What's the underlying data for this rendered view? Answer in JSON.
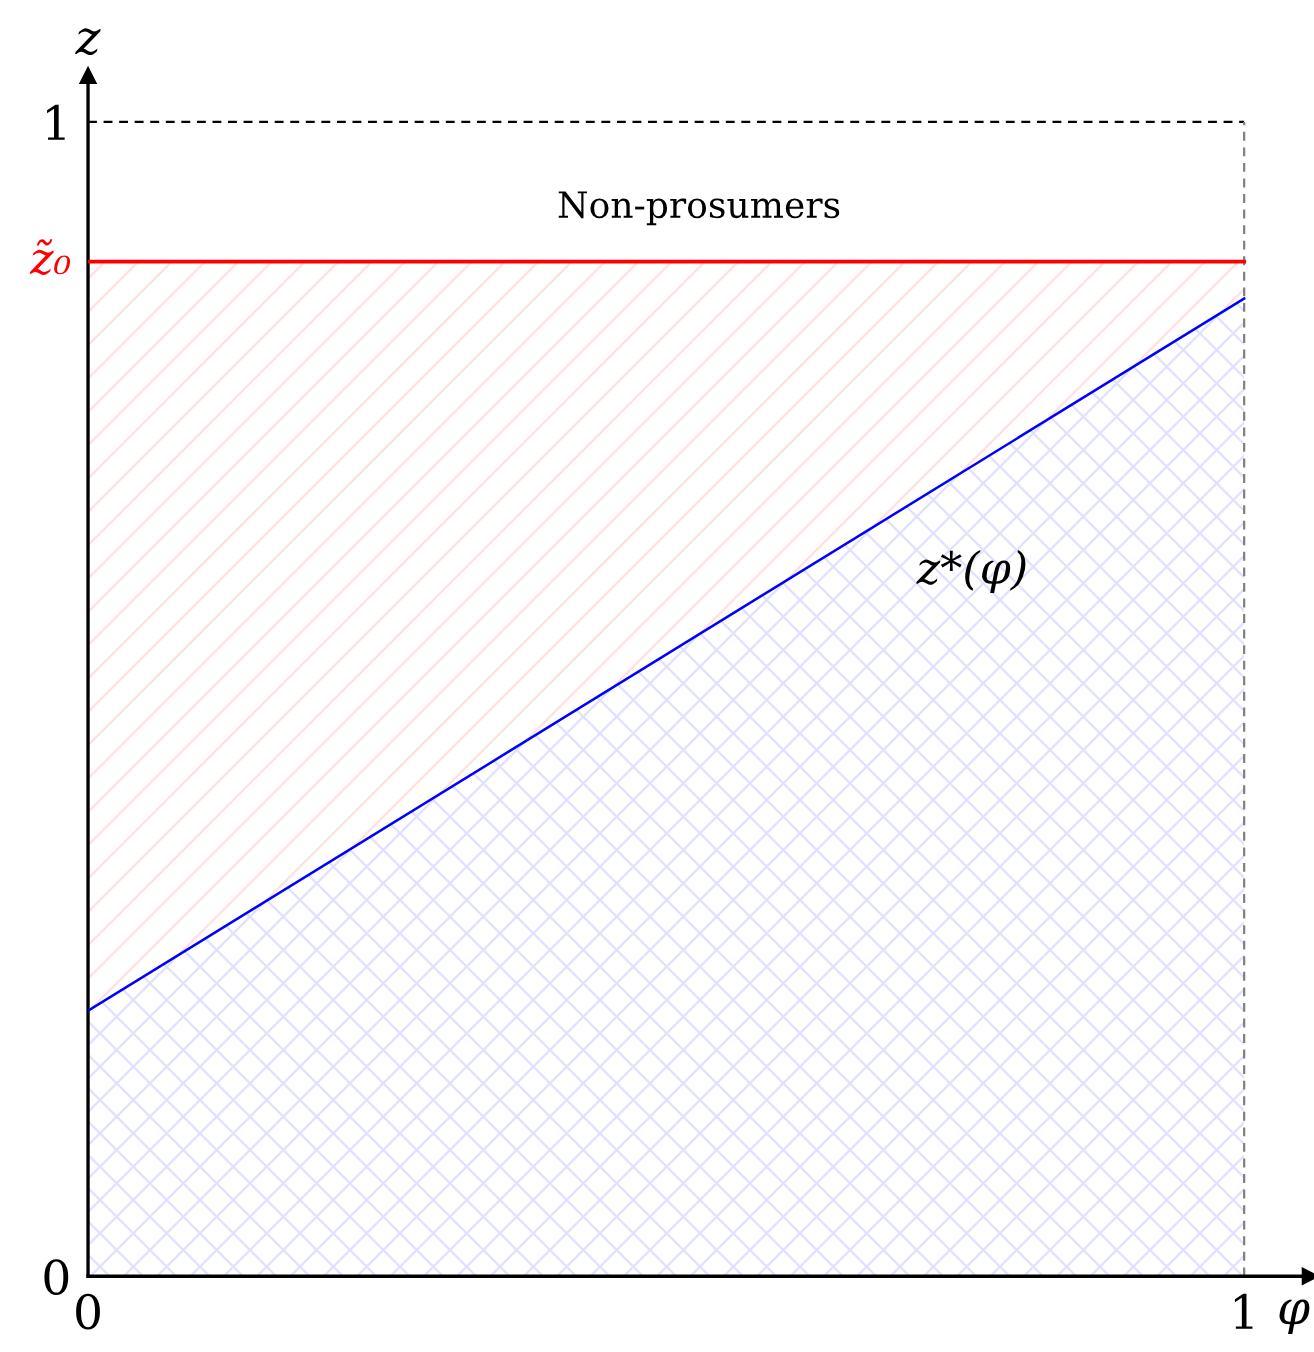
{
  "chart_data": {
    "type": "area",
    "xlabel": "φ",
    "ylabel": "z",
    "x": [
      0,
      1
    ],
    "series": [
      {
        "type": "area",
        "color": "#ff0000",
        "values": [
          0.879,
          0.879
        ]
      },
      {
        "name": "z*(φ)",
        "color": "#0000ff",
        "values": [
          0.23,
          0.847
        ]
      }
    ],
    "xlim": [
      0,
      1.057
    ],
    "ylim": [
      0,
      1.04
    ],
    "xticks": [
      0,
      1
    ],
    "yticks": [
      0,
      1
    ],
    "ref_lines": [
      {
        "axis": "y",
        "value": 1,
        "color": "#000000",
        "line_style": "dashed"
      },
      {
        "axis": "x",
        "value": 1,
        "color": "#808080",
        "line_style": "dashed"
      }
    ],
    "annotations": [
      "Non-prosumers",
      {
        "text": "z̃₀",
        "x": 0,
        "y": 0.879
      }
    ],
    "grid": false,
    "legend": false,
    "marker": "none"
  }
}
